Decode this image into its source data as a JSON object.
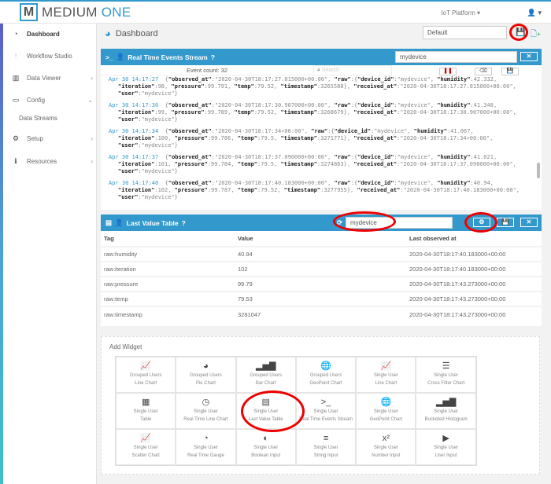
{
  "brand": {
    "mark": "M",
    "name_a": "MEDIUM",
    "name_b": " ONE"
  },
  "topbar": {
    "platform": "IoT Platform ▾",
    "user": "👤 ▾"
  },
  "sidebar": {
    "items": [
      {
        "label": "Dashboard",
        "icon": "dashboard-icon",
        "glyph": "◔",
        "active": true
      },
      {
        "label": "Workflow Studio",
        "icon": "sitemap-icon",
        "glyph": "⫶",
        "chev": ""
      },
      {
        "label": "Data Viewer",
        "icon": "table-icon",
        "glyph": "▥",
        "chev": "›"
      },
      {
        "label": "Config",
        "icon": "monitor-icon",
        "glyph": "▭",
        "chev": "⌄"
      },
      {
        "label": "Data Streams",
        "icon": "",
        "glyph": "",
        "chev": ""
      },
      {
        "label": "Setup",
        "icon": "gears-icon",
        "glyph": "⚙",
        "chev": "›"
      },
      {
        "label": "Resources",
        "icon": "info-icon",
        "glyph": "ℹ",
        "chev": "›"
      }
    ]
  },
  "header": {
    "title": "Dashboard",
    "dashboard_select": "Default"
  },
  "stream": {
    "title": "Real Time Events Stream",
    "device": "mydevice",
    "event_count": "Event count: 32",
    "search_placeholder": "Search",
    "entries": [
      {
        "time": "Apr 30 14:17:27",
        "l1": "{\"observed_at\":\"2020-04-30T18:17:27.815000+00:00\", \"raw\":{\"device_id\":\"mydevice\", \"humidity\":42.332,",
        "l2": "\"iteration\":98, \"pressure\":99.791, \"temp\":79.52, \"timestamp\":3265588}, \"received_at\":\"2020-04-30T18:17:27.815000+00:00\",",
        "l3": "\"user\":\"mydevice\"}"
      },
      {
        "time": "Apr 30 14:17:30",
        "l1": "{\"observed_at\":\"2020-04-30T18:17:30.907000+00:00\", \"raw\":{\"device_id\":\"mydevice\", \"humidity\":41.348,",
        "l2": "\"iteration\":99, \"pressure\":99.789, \"temp\":79.52, \"timestamp\":3268679}, \"received_at\":\"2020-04-30T18:17:30.907000+00:00\",",
        "l3": "\"user\":\"mydevice\"}"
      },
      {
        "time": "Apr 30 14:17:34",
        "l1": "{\"observed_at\":\"2020-04-30T18:17:34+00:00\", \"raw\":{\"device_id\":\"mydevice\", \"humidity\":41.067,",
        "l2": "\"iteration\":100, \"pressure\":99.786, \"temp\":79.5, \"timestamp\":3271771}, \"received_at\":\"2020-04-30T18:17:34+00:00\",",
        "l3": "\"user\":\"mydevice\"}"
      },
      {
        "time": "Apr 30 14:17:37",
        "l1": "{\"observed_at\":\"2020-04-30T18:17:37.090000+00:00\", \"raw\":{\"device_id\":\"mydevice\", \"humidity\":41.021,",
        "l2": "\"iteration\":101, \"pressure\":99.784, \"temp\":79.5, \"timestamp\":3274863}, \"received_at\":\"2020-04-30T18:17:37.090000+00:00\",",
        "l3": "\"user\":\"mydevice\"}"
      },
      {
        "time": "Apr 30 14:17:40",
        "l1": "{\"observed_at\":\"2020-04-30T18:17:40.183000+00:00\", \"raw\":{\"device_id\":\"mydevice\", \"humidity\":40.94,",
        "l2": "\"iteration\":102, \"pressure\":99.787, \"temp\":79.52, \"timestamp\":3277955}, \"received_at\":\"2020-04-30T18:17:40.183000+00:00\",",
        "l3": "\"user\":\"mydevice\"}"
      }
    ]
  },
  "lvt": {
    "title": "Last Value Table",
    "device": "mydevice",
    "columns": [
      "Tag",
      "Value",
      "Last observed at"
    ],
    "rows": [
      [
        "raw:humidity",
        "40.94",
        "2020-04-30T18:17:40.183000+00:00"
      ],
      [
        "raw:iteration",
        "102",
        "2020-04-30T18:17:40.183000+00:00"
      ],
      [
        "raw:pressure",
        "99.79",
        "2020-04-30T18:17:43.273000+00:00"
      ],
      [
        "raw:temp",
        "79.53",
        "2020-04-30T18:17:43.273000+00:00"
      ],
      [
        "raw:timestamp",
        "3281047",
        "2020-04-30T18:17:43.273000+00:00"
      ]
    ]
  },
  "add_widget": {
    "title": "Add Widget",
    "widgets": [
      {
        "a": "Grouped Users",
        "b": "Line Chart",
        "glyph": "📈",
        "icon": "line-chart-icon"
      },
      {
        "a": "Grouped Users",
        "b": "Pie Chart",
        "glyph": "◕",
        "icon": "pie-chart-icon"
      },
      {
        "a": "Grouped Users",
        "b": "Bar Chart",
        "glyph": "▂▅▇",
        "icon": "bar-chart-icon"
      },
      {
        "a": "Grouped Users",
        "b": "GeoPoint Chart",
        "glyph": "🌐",
        "icon": "globe-icon"
      },
      {
        "a": "Single User",
        "b": "Line Chart",
        "glyph": "📈",
        "icon": "line-chart-icon"
      },
      {
        "a": "Single User",
        "b": "Cross Filter Chart",
        "glyph": "☰",
        "icon": "server-icon"
      },
      {
        "a": "Single User",
        "b": "Table",
        "glyph": "▦",
        "icon": "table-icon"
      },
      {
        "a": "Single User",
        "b": "Real Time Line Chart",
        "glyph": "◷",
        "icon": "clock-icon"
      },
      {
        "a": "Single User",
        "b": "Last Value Table",
        "glyph": "▤",
        "icon": "list-table-icon"
      },
      {
        "a": "Single User",
        "b": "Real Time Events Stream",
        "glyph": ">_",
        "icon": "terminal-icon"
      },
      {
        "a": "Single User",
        "b": "GeoPoint Chart",
        "glyph": "🌐",
        "icon": "globe-icon"
      },
      {
        "a": "Single User",
        "b": "Bucketed Histogram",
        "glyph": "▂▅▇",
        "icon": "histogram-icon"
      },
      {
        "a": "Single User",
        "b": "Scatter Chart",
        "glyph": "📈",
        "icon": "scatter-chart-icon"
      },
      {
        "a": "Single User",
        "b": "Real Time Gauge",
        "glyph": "◔",
        "icon": "gauge-icon"
      },
      {
        "a": "Single User",
        "b": "Boolean Input",
        "glyph": "◐",
        "icon": "toggle-icon"
      },
      {
        "a": "Single User",
        "b": "String Input",
        "glyph": "≡",
        "icon": "align-justify-icon"
      },
      {
        "a": "Single User",
        "b": "Number Input",
        "glyph": "x²",
        "icon": "superscript-icon"
      },
      {
        "a": "Single User",
        "b": "User Input",
        "glyph": "▶",
        "icon": "play-square-icon"
      }
    ]
  },
  "colors": {
    "accent": "#3399cc",
    "annotation": "#e00000"
  }
}
